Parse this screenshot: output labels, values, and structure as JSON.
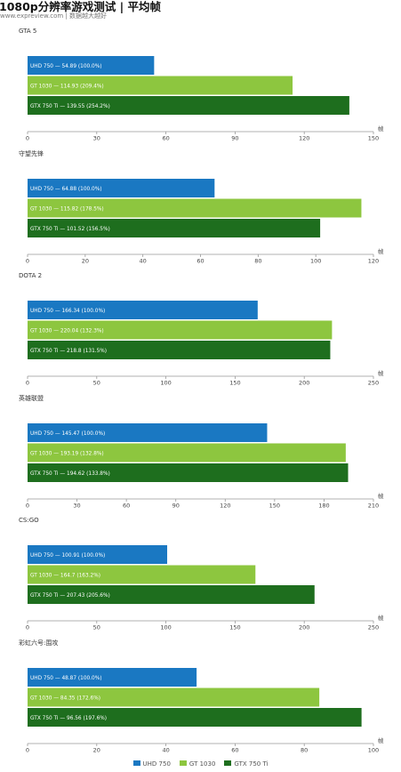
{
  "header": {
    "title": "1080p分辨率游戏测试 | 平均帧",
    "subtitle": "www.expreview.com | 数据越大越好"
  },
  "colors": {
    "UHD 750": "#1a78c2",
    "GT 1030": "#8dc63f",
    "GTX 750 Ti": "#1e6e1e",
    "axis": "#999999",
    "text": "#444444"
  },
  "legend": {
    "items": [
      {
        "name": "UHD 750",
        "color": "#1a78c2"
      },
      {
        "name": "GT 1030",
        "color": "#8dc63f"
      },
      {
        "name": "GTX 750 Ti",
        "color": "#1e6e1e"
      }
    ]
  },
  "chart_data": [
    {
      "type": "bar",
      "title": "GTA 5",
      "unit": "帧",
      "xlim": [
        0,
        150
      ],
      "ticks": [
        0,
        30,
        60,
        90,
        120,
        150
      ],
      "bars": [
        {
          "series": "UHD 750",
          "value": 54.89,
          "label": "UHD 750 — 54.89 (100.0%)"
        },
        {
          "series": "GT 1030",
          "value": 114.93,
          "label": "GT 1030 — 114.93 (209.4%)"
        },
        {
          "series": "GTX 750 Ti",
          "value": 139.55,
          "label": "GTX 750 Ti — 139.55 (254.2%)"
        }
      ]
    },
    {
      "type": "bar",
      "title": "守望先锋",
      "unit": "帧",
      "xlim": [
        0,
        120
      ],
      "ticks": [
        0,
        20,
        40,
        60,
        80,
        100,
        120
      ],
      "bars": [
        {
          "series": "UHD 750",
          "value": 64.88,
          "label": "UHD 750 — 64.88 (100.0%)"
        },
        {
          "series": "GT 1030",
          "value": 115.82,
          "label": "GT 1030 — 115.82 (178.5%)"
        },
        {
          "series": "GTX 750 Ti",
          "value": 101.52,
          "label": "GTX 750 Ti — 101.52 (156.5%)"
        }
      ]
    },
    {
      "type": "bar",
      "title": "DOTA 2",
      "unit": "帧",
      "xlim": [
        0,
        250
      ],
      "ticks": [
        0,
        50,
        100,
        150,
        200,
        250
      ],
      "bars": [
        {
          "series": "UHD 750",
          "value": 166.34,
          "label": "UHD 750 — 166.34 (100.0%)"
        },
        {
          "series": "GT 1030",
          "value": 220.04,
          "label": "GT 1030 — 220.04 (132.3%)"
        },
        {
          "series": "GTX 750 Ti",
          "value": 218.8,
          "label": "GTX 750 Ti — 218.8 (131.5%)"
        }
      ]
    },
    {
      "type": "bar",
      "title": "英雄联盟",
      "unit": "帧",
      "xlim": [
        0,
        210
      ],
      "ticks": [
        0,
        30,
        60,
        90,
        120,
        150,
        180,
        210
      ],
      "bars": [
        {
          "series": "UHD 750",
          "value": 145.47,
          "label": "UHD 750 — 145.47 (100.0%)"
        },
        {
          "series": "GT 1030",
          "value": 193.19,
          "label": "GT 1030 — 193.19 (132.8%)"
        },
        {
          "series": "GTX 750 Ti",
          "value": 194.62,
          "label": "GTX 750 Ti — 194.62 (133.8%)"
        }
      ]
    },
    {
      "type": "bar",
      "title": "CS:GO",
      "unit": "帧",
      "xlim": [
        0,
        250
      ],
      "ticks": [
        0,
        50,
        100,
        150,
        200,
        250
      ],
      "bars": [
        {
          "series": "UHD 750",
          "value": 100.91,
          "label": "UHD 750 — 100.91 (100.0%)"
        },
        {
          "series": "GT 1030",
          "value": 164.7,
          "label": "GT 1030 — 164.7 (163.2%)"
        },
        {
          "series": "GTX 750 Ti",
          "value": 207.43,
          "label": "GTX 750 Ti — 207.43 (205.6%)"
        }
      ]
    },
    {
      "type": "bar",
      "title": "彩虹六号:围攻",
      "unit": "帧",
      "xlim": [
        0,
        100
      ],
      "ticks": [
        0,
        20,
        40,
        60,
        80,
        100
      ],
      "bars": [
        {
          "series": "UHD 750",
          "value": 48.87,
          "label": "UHD 750 — 48.87 (100.0%)"
        },
        {
          "series": "GT 1030",
          "value": 84.35,
          "label": "GT 1030 — 84.35 (172.6%)"
        },
        {
          "series": "GTX 750 Ti",
          "value": 96.56,
          "label": "GTX 750 Ti — 96.56 (197.6%)"
        }
      ]
    }
  ]
}
